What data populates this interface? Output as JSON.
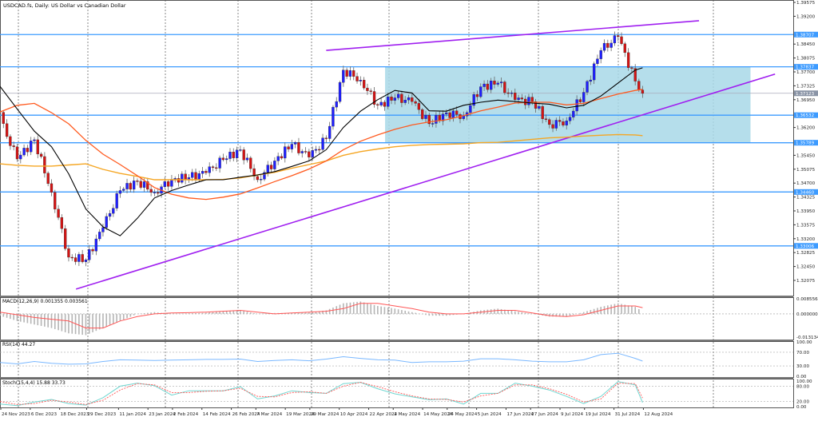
{
  "header": {
    "title": "USDCAD.fs, Daily:  US Dollar vs Canadian Dollar"
  },
  "colors": {
    "bull": "#1f1fff",
    "bear": "#d41414",
    "ma_fast": "#000000",
    "ma_mid": "#ff5a1f",
    "ma_slow": "#f5a623",
    "level": "#3d9bff",
    "channel": "#a020f0",
    "zone": "#a8d8e8",
    "rsi": "#7ab8ff",
    "macd_signal": "#ff5555",
    "stoch_main": "#6fd6d0",
    "stoch_signal": "#ff5555"
  },
  "chart_data": {
    "type": "candlestick",
    "symbol": "USDCAD.fs",
    "timeframe": "Daily",
    "ylim": [
      1.32075,
      1.39575
    ],
    "price_ticks": [
      "1.39575",
      "1.39200",
      "1.38450",
      "1.38075",
      "1.37700",
      "1.37325",
      "1.36950",
      "1.36200",
      "1.35450",
      "1.35075",
      "1.34700",
      "1.34325",
      "1.33950",
      "1.33575",
      "1.33200",
      "1.32825",
      "1.32450",
      "1.32075"
    ],
    "date_ticks": [
      "24 Nov 2023",
      "6 Dec 2023",
      "18 Dec 2023",
      "29 Dec 2023",
      "11 Jan 2024",
      "23 Jan 2024",
      "2 Feb 2024",
      "14 Feb 2024",
      "26 Feb 2024",
      "7 Mar 2024",
      "19 Mar 2024",
      "29 Mar 2024",
      "10 Apr 2024",
      "22 Apr 2024",
      "2 May 2024",
      "14 May 2024",
      "24 May 2024",
      "5 Jun 2024",
      "17 Jun 2024",
      "27 Jun 2024",
      "9 Jul 2024",
      "19 Jul 2024",
      "31 Jul 2024",
      "12 Aug 2024"
    ],
    "dates": [
      "2023-11-24",
      "2023-12-01",
      "2023-12-08",
      "2023-12-15",
      "2023-12-22",
      "2023-12-29",
      "2024-01-05",
      "2024-01-12",
      "2024-01-19",
      "2024-01-26",
      "2024-02-02",
      "2024-02-09",
      "2024-02-16",
      "2024-02-23",
      "2024-03-01",
      "2024-03-08",
      "2024-03-15",
      "2024-03-22",
      "2024-03-29",
      "2024-04-05",
      "2024-04-12",
      "2024-04-19",
      "2024-04-26",
      "2024-05-03",
      "2024-05-10",
      "2024-05-17",
      "2024-05-24",
      "2024-05-31",
      "2024-06-07",
      "2024-06-14",
      "2024-06-21",
      "2024-06-28",
      "2024-07-05",
      "2024-07-12",
      "2024-07-19",
      "2024-07-26",
      "2024-08-02",
      "2024-08-09",
      "2024-08-12"
    ],
    "close": [
      1.3641,
      1.3535,
      1.3587,
      1.3445,
      1.327,
      1.3263,
      1.335,
      1.345,
      1.3475,
      1.3445,
      1.348,
      1.3485,
      1.3498,
      1.3533,
      1.356,
      1.3479,
      1.353,
      1.3575,
      1.354,
      1.359,
      1.3775,
      1.3748,
      1.368,
      1.37,
      1.369,
      1.363,
      1.366,
      1.3651,
      1.373,
      1.374,
      1.3695,
      1.369,
      1.3628,
      1.3638,
      1.3715,
      1.3828,
      1.3865,
      1.3745,
      1.3712
    ],
    "ma_fast": [
      1.3731,
      1.367,
      1.361,
      1.3568,
      1.3495,
      1.34,
      1.3352,
      1.3328,
      1.3375,
      1.343,
      1.345,
      1.3465,
      1.3479,
      1.3479,
      1.3486,
      1.3492,
      1.3501,
      1.3515,
      1.353,
      1.356,
      1.362,
      1.3664,
      1.3695,
      1.372,
      1.3713,
      1.3665,
      1.3664,
      1.368,
      1.3688,
      1.3694,
      1.369,
      1.3686,
      1.3683,
      1.3673,
      1.368,
      1.3705,
      1.374,
      1.3775,
      1.3781
    ],
    "ma_mid": [
      1.3662,
      1.368,
      1.3685,
      1.366,
      1.363,
      1.3585,
      1.3548,
      1.352,
      1.349,
      1.3458,
      1.344,
      1.343,
      1.3426,
      1.3432,
      1.3441,
      1.3457,
      1.3474,
      1.349,
      1.3508,
      1.353,
      1.356,
      1.3583,
      1.36,
      1.3615,
      1.3627,
      1.3635,
      1.3641,
      1.3652,
      1.3665,
      1.3675,
      1.3686,
      1.3688,
      1.3688,
      1.3681,
      1.3685,
      1.3698,
      1.371,
      1.372,
      1.3723
    ],
    "ma_slow": [
      1.3522,
      1.3518,
      1.3516,
      1.3516,
      1.3519,
      1.3522,
      1.3507,
      1.3496,
      1.3488,
      1.3479,
      1.3479,
      1.3479,
      1.3479,
      1.348,
      1.3484,
      1.3492,
      1.3499,
      1.351,
      1.352,
      1.353,
      1.3545,
      1.3555,
      1.3562,
      1.3568,
      1.3572,
      1.3574,
      1.3575,
      1.3576,
      1.3579,
      1.358,
      1.3584,
      1.3588,
      1.3592,
      1.3594,
      1.3597,
      1.3599,
      1.3601,
      1.36,
      1.3598
    ],
    "levels": [
      {
        "price": 1.38707,
        "label": "1.38707"
      },
      {
        "price": 1.37837,
        "label": "1.37837"
      },
      {
        "price": 1.36532,
        "label": "1.36532"
      },
      {
        "price": 1.35789,
        "label": "1.35789"
      },
      {
        "price": 1.3446,
        "label": "1.34460"
      },
      {
        "price": 1.33006,
        "label": "1.33006"
      }
    ],
    "current_price": {
      "price": 1.37123,
      "label": "1.37123"
    },
    "zone": {
      "from_date": "2024-04-29",
      "to_date": "2024-09-25",
      "top": 1.37837,
      "bottom": 1.35789
    },
    "trendlines": [
      {
        "from": [
          "2023-12-25",
          1.3184
        ],
        "to": [
          "2024-10-05",
          1.3764
        ]
      },
      {
        "from": [
          "2024-04-05",
          1.3828
        ],
        "to": [
          "2024-09-04",
          1.3908
        ]
      }
    ],
    "macd": {
      "label": "MACD(12,26,9) 0.001355 0.003561",
      "ylim": [
        -0.013134,
        0.008556
      ],
      "ticks": [
        "0.008556",
        "0.000000",
        "-0.013134"
      ],
      "main": [
        -0.001,
        -0.004,
        -0.006,
        -0.008,
        -0.011,
        -0.012,
        -0.008,
        -0.004,
        0.0,
        0.001,
        0.0,
        0.0003,
        0.0006,
        0.0015,
        0.002,
        0.0,
        0.0005,
        0.0005,
        0.0008,
        0.002,
        0.006,
        0.007,
        0.0045,
        0.003,
        0.001,
        -0.001,
        -0.001,
        0.0,
        0.002,
        0.003,
        0.0015,
        0.0,
        -0.0015,
        -0.0015,
        0.001,
        0.004,
        0.006,
        0.004,
        0.001355
      ],
      "signal": [
        0.001,
        -0.0005,
        -0.002,
        -0.003,
        -0.004,
        -0.008,
        -0.008,
        -0.004,
        -0.0015,
        0.0,
        0.0005,
        0.0007,
        0.001,
        0.0015,
        0.002,
        0.001,
        0.0,
        0.0005,
        0.001,
        0.0015,
        0.003,
        0.006,
        0.006,
        0.0045,
        0.003,
        0.001,
        0.0,
        0.0,
        0.001,
        0.002,
        0.002,
        0.0005,
        -0.001,
        -0.0015,
        -0.0005,
        0.002,
        0.0045,
        0.0045,
        0.003561
      ]
    },
    "rsi": {
      "label": "RSI(14) 44.27",
      "ylim": [
        0,
        100
      ],
      "ticks": [
        "100.00",
        "70.00",
        "30.00",
        "0.00"
      ],
      "levels": [
        70,
        30
      ],
      "values": [
        40,
        36,
        43,
        38,
        35,
        36,
        43,
        48,
        47,
        46,
        47,
        48,
        49,
        49,
        50,
        43,
        46,
        48,
        45,
        50,
        57,
        52,
        48,
        47,
        40,
        42,
        42,
        44,
        51,
        51,
        48,
        44,
        42,
        42,
        48,
        63,
        67,
        52,
        44.27
      ]
    },
    "stoch": {
      "label": "Stoch(15,4,4) 15.88 33.73",
      "ylim": [
        0,
        100
      ],
      "ticks": [
        "100.00",
        "80.00",
        "20.00",
        "0.00"
      ],
      "levels": [
        80,
        20
      ],
      "main": [
        10,
        4,
        18,
        28,
        12,
        6,
        35,
        80,
        92,
        82,
        45,
        62,
        62,
        62,
        78,
        30,
        42,
        62,
        55,
        52,
        90,
        95,
        70,
        50,
        38,
        27,
        30,
        10,
        52,
        52,
        92,
        80,
        65,
        40,
        12,
        40,
        98,
        85,
        15.88
      ],
      "signal": [
        20,
        8,
        12,
        25,
        18,
        8,
        25,
        65,
        90,
        85,
        55,
        55,
        60,
        62,
        72,
        40,
        38,
        55,
        58,
        52,
        80,
        95,
        78,
        58,
        42,
        30,
        28,
        18,
        42,
        52,
        85,
        85,
        70,
        48,
        18,
        30,
        92,
        90,
        33.73
      ]
    }
  }
}
